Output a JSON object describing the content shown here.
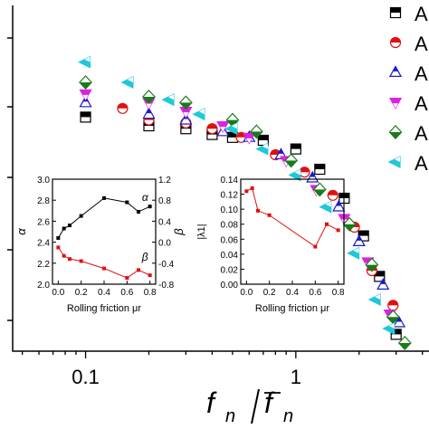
{
  "chart_data": [
    {
      "type": "scatter",
      "xlabel_main": "f",
      "xlabel_sub": "n",
      "xscale": "log",
      "xlim": [
        0.045,
        4.3
      ],
      "xticks": [
        {
          "value": 0.1,
          "label": "0.1"
        },
        {
          "value": 1,
          "label": "1"
        }
      ],
      "legend": {
        "placement": "top-right",
        "entries": [
          {
            "marker": "square-half",
            "color": "#000000",
            "label": "A"
          },
          {
            "marker": "circle-half",
            "color": "#e01010",
            "label": "A"
          },
          {
            "marker": "triangle-up",
            "color": "#1a1acc",
            "label": "A"
          },
          {
            "marker": "triangle-down",
            "color": "#e020e0",
            "label": "A"
          },
          {
            "marker": "diamond-half",
            "color": "#1a7a1a",
            "label": "A"
          },
          {
            "marker": "triangle-left",
            "color": "#20c8d8",
            "label": "A"
          }
        ]
      },
      "series": [
        {
          "marker": "square-half",
          "color": "#000000",
          "x": [
            0.1,
            0.2,
            0.3,
            0.4,
            0.5,
            0.7,
            1.0,
            1.3,
            1.7,
            2.1,
            2.5,
            3.0
          ],
          "y": [
            0.83,
            0.8,
            0.79,
            0.77,
            0.76,
            0.75,
            0.72,
            0.65,
            0.55,
            0.42,
            0.28,
            0.08
          ]
        },
        {
          "marker": "circle-half",
          "color": "#e01010",
          "x": [
            0.15,
            0.2,
            0.3,
            0.4,
            0.55,
            0.8,
            1.1,
            1.5,
            1.9,
            2.3,
            2.9
          ],
          "y": [
            0.86,
            0.82,
            0.81,
            0.79,
            0.76,
            0.7,
            0.64,
            0.56,
            0.45,
            0.3,
            0.18
          ]
        },
        {
          "marker": "triangle-up",
          "color": "#1a1acc",
          "x": [
            0.1,
            0.2,
            0.3,
            0.45,
            0.6,
            0.85,
            1.2,
            1.6,
            2.0,
            2.6,
            3.1
          ],
          "y": [
            0.88,
            0.84,
            0.82,
            0.78,
            0.76,
            0.7,
            0.62,
            0.52,
            0.4,
            0.25,
            0.12
          ]
        },
        {
          "marker": "triangle-down",
          "color": "#e020e0",
          "x": [
            0.1,
            0.2,
            0.3,
            0.45,
            0.6,
            0.9,
            1.25,
            1.7,
            2.2,
            2.8
          ],
          "y": [
            0.91,
            0.88,
            0.85,
            0.8,
            0.76,
            0.68,
            0.58,
            0.48,
            0.33,
            0.15
          ]
        },
        {
          "marker": "diamond-half",
          "color": "#1a7a1a",
          "x": [
            0.1,
            0.2,
            0.3,
            0.5,
            0.65,
            0.95,
            1.3,
            1.8,
            2.3,
            2.9,
            3.3
          ],
          "y": [
            0.95,
            0.9,
            0.88,
            0.82,
            0.78,
            0.68,
            0.58,
            0.46,
            0.32,
            0.14,
            0.05
          ]
        },
        {
          "marker": "triangle-left",
          "color": "#20c8d8",
          "x": [
            0.1,
            0.16,
            0.25,
            0.35,
            0.5,
            0.7,
            1.0,
            1.4,
            1.9,
            2.4,
            2.8
          ],
          "y": [
            1.02,
            0.95,
            0.89,
            0.84,
            0.79,
            0.72,
            0.63,
            0.52,
            0.36,
            0.2,
            0.1
          ]
        }
      ]
    },
    {
      "type": "line",
      "inset": "left",
      "xlabel": "Rolling friction μr",
      "ylabel_left": "α",
      "ylabel_right": "β",
      "xlim": [
        -0.05,
        0.85
      ],
      "ylim_left": [
        2.0,
        3.0
      ],
      "ylim_right": [
        -0.8,
        1.2
      ],
      "xticks": [
        "0.0",
        "0.2",
        "0.4",
        "0.6",
        "0.8"
      ],
      "yticks_left": [
        "2.0",
        "2.2",
        "2.4",
        "2.6",
        "2.8",
        "3.0"
      ],
      "yticks_right": [
        "-0.8",
        "-0.4",
        "0.0",
        "0.4",
        "0.8",
        "1.2"
      ],
      "series": [
        {
          "name": "α",
          "axis": "left",
          "color": "#000000",
          "x": [
            0.0,
            0.05,
            0.1,
            0.2,
            0.4,
            0.6,
            0.7,
            0.8
          ],
          "y": [
            2.44,
            2.53,
            2.56,
            2.65,
            2.82,
            2.78,
            2.69,
            2.74
          ]
        },
        {
          "name": "β",
          "axis": "right",
          "color": "#e01010",
          "x": [
            0.0,
            0.05,
            0.1,
            0.2,
            0.4,
            0.6,
            0.7,
            0.8
          ],
          "y": [
            -0.1,
            -0.26,
            -0.32,
            -0.36,
            -0.5,
            -0.68,
            -0.53,
            -0.63
          ]
        }
      ]
    },
    {
      "type": "line",
      "inset": "right",
      "xlabel": "Rolling friction μr",
      "ylabel": "|λ1|",
      "xlim": [
        -0.05,
        0.85
      ],
      "ylim": [
        0.0,
        0.14
      ],
      "xticks": [
        "0.0",
        "0.2",
        "0.4",
        "0.6",
        "0.8"
      ],
      "yticks": [
        "0.00",
        "0.02",
        "0.04",
        "0.06",
        "0.08",
        "0.10",
        "0.12",
        "0.14"
      ],
      "series": [
        {
          "color": "#e01010",
          "x": [
            0.0,
            0.05,
            0.1,
            0.2,
            0.6,
            0.7,
            0.8
          ],
          "y": [
            0.124,
            0.128,
            0.098,
            0.092,
            0.05,
            0.08,
            0.072
          ]
        }
      ]
    }
  ]
}
